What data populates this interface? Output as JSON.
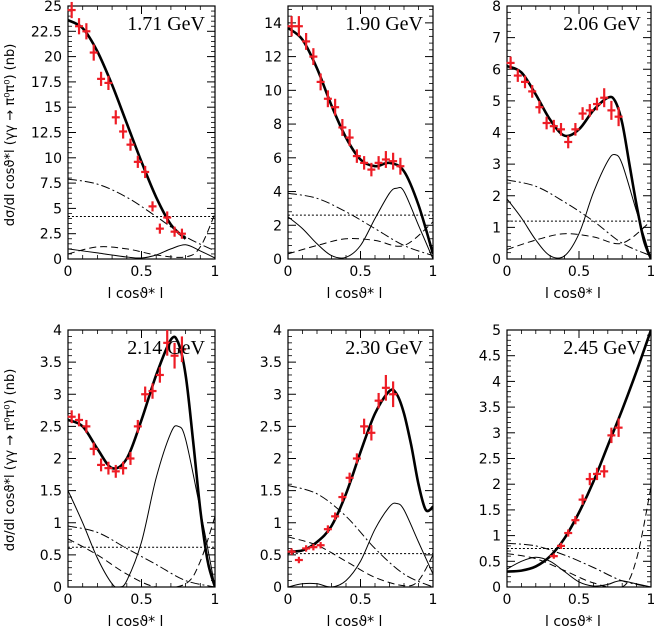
{
  "figure": {
    "y_axis_label": "dσ/dl cosϑ*l (γγ → π⁰π⁰) (nb)",
    "x_axis_label": "l cosϑ* l"
  },
  "chart_data": [
    {
      "type": "line",
      "title": "1.71 GeV",
      "xlim": [
        0,
        1
      ],
      "ylim": [
        0,
        25
      ],
      "xticks": [
        0,
        0.5,
        1
      ],
      "xticklabels": [
        "0",
        "0.5",
        "1"
      ],
      "yticks": [
        0,
        2.5,
        5,
        7.5,
        10,
        12.5,
        15,
        17.5,
        20,
        22.5,
        25
      ],
      "yticklabels": [
        "0",
        "2.5",
        "5",
        "7.5",
        "10",
        "12.5",
        "15",
        "17.5",
        "20",
        "22.5",
        "25"
      ],
      "points": {
        "x": [
          0.025,
          0.075,
          0.125,
          0.175,
          0.225,
          0.275,
          0.325,
          0.375,
          0.425,
          0.475,
          0.525,
          0.575,
          0.625,
          0.675,
          0.725,
          0.775
        ],
        "y": [
          24.6,
          23.0,
          22.5,
          20.4,
          17.8,
          17.4,
          14.0,
          12.6,
          11.3,
          9.6,
          8.6,
          5.2,
          3.0,
          4.1,
          2.7,
          2.5
        ],
        "err": [
          0.8,
          0.8,
          0.8,
          0.8,
          0.7,
          0.7,
          0.7,
          0.7,
          0.6,
          0.6,
          0.6,
          0.5,
          0.5,
          0.6,
          0.5,
          0.5
        ]
      },
      "curves": [
        {
          "style": "total",
          "x": [
            0,
            0.1,
            0.2,
            0.3,
            0.4,
            0.5,
            0.6,
            0.7,
            0.8
          ],
          "y": [
            23.6,
            22.8,
            20.5,
            17.2,
            13.4,
            9.6,
            6.1,
            3.4,
            2.0
          ]
        },
        {
          "style": "dashdot",
          "x": [
            0,
            0.2,
            0.4,
            0.6,
            0.8,
            1.0
          ],
          "y": [
            7.9,
            7.4,
            6.1,
            4.2,
            2.2,
            0.8
          ]
        },
        {
          "style": "dotted",
          "x": [
            0,
            1
          ],
          "y": [
            4.2,
            4.2
          ]
        },
        {
          "style": "solid",
          "x": [
            0,
            0.2,
            0.4,
            0.5,
            0.6,
            0.7,
            0.8,
            0.9,
            1.0
          ],
          "y": [
            1.0,
            0.6,
            0.2,
            0.1,
            0.4,
            1.0,
            1.4,
            0.8,
            0.1
          ]
        },
        {
          "style": "dashed",
          "x": [
            0,
            0.2,
            0.4,
            0.6,
            0.8,
            0.9,
            1.0
          ],
          "y": [
            0.5,
            1.2,
            1.0,
            0.4,
            0.2,
            1.2,
            4.5
          ]
        }
      ]
    },
    {
      "type": "line",
      "title": "1.90 GeV",
      "xlim": [
        0,
        1
      ],
      "ylim": [
        0,
        15
      ],
      "xticks": [
        0,
        0.5,
        1
      ],
      "xticklabels": [
        "0",
        "0.5",
        "1"
      ],
      "yticks": [
        0,
        2,
        4,
        6,
        8,
        10,
        12,
        14
      ],
      "yticklabels": [
        "0",
        "2",
        "4",
        "6",
        "8",
        "10",
        "12",
        "14"
      ],
      "points": {
        "x": [
          0.025,
          0.075,
          0.125,
          0.175,
          0.225,
          0.275,
          0.325,
          0.375,
          0.425,
          0.475,
          0.525,
          0.575,
          0.625,
          0.675,
          0.725,
          0.775
        ],
        "y": [
          13.8,
          13.8,
          12.9,
          12.0,
          10.5,
          9.5,
          9.0,
          7.8,
          7.2,
          6.1,
          5.7,
          5.3,
          5.7,
          5.9,
          5.8,
          5.5
        ],
        "err": [
          0.6,
          0.6,
          0.5,
          0.5,
          0.5,
          0.5,
          0.5,
          0.5,
          0.5,
          0.4,
          0.4,
          0.4,
          0.4,
          0.5,
          0.5,
          0.5
        ]
      },
      "curves": [
        {
          "style": "total",
          "x": [
            0,
            0.1,
            0.2,
            0.3,
            0.4,
            0.5,
            0.6,
            0.7,
            0.8,
            0.9,
            1.0
          ],
          "y": [
            13.7,
            13.0,
            11.3,
            9.1,
            7.2,
            5.9,
            5.5,
            5.7,
            5.2,
            3.2,
            0.3
          ]
        },
        {
          "style": "dashdot",
          "x": [
            0,
            0.2,
            0.4,
            0.6,
            0.8,
            1.0
          ],
          "y": [
            3.9,
            3.6,
            2.8,
            1.8,
            0.8,
            0.2
          ]
        },
        {
          "style": "dotted",
          "x": [
            0,
            1
          ],
          "y": [
            2.6,
            2.6
          ]
        },
        {
          "style": "solid",
          "x": [
            0,
            0.1,
            0.2,
            0.3,
            0.4,
            0.5,
            0.6,
            0.7,
            0.75,
            0.8,
            0.9,
            1.0
          ],
          "y": [
            2.5,
            1.8,
            0.9,
            0.2,
            0.1,
            0.8,
            2.4,
            3.9,
            4.2,
            4.0,
            2.0,
            0.0
          ]
        },
        {
          "style": "dashed",
          "x": [
            0,
            0.2,
            0.4,
            0.6,
            0.8,
            1.0
          ],
          "y": [
            0.3,
            0.8,
            1.2,
            1.1,
            0.8,
            2.2
          ]
        }
      ]
    },
    {
      "type": "line",
      "title": "2.06 GeV",
      "xlim": [
        0,
        1
      ],
      "ylim": [
        0,
        8
      ],
      "xticks": [
        0,
        0.5,
        1
      ],
      "xticklabels": [
        "0",
        "0.5",
        "1"
      ],
      "yticks": [
        0,
        1,
        2,
        3,
        4,
        5,
        6,
        7,
        8
      ],
      "yticklabels": [
        "0",
        "1",
        "2",
        "3",
        "4",
        "5",
        "6",
        "7",
        "8"
      ],
      "points": {
        "x": [
          0.025,
          0.075,
          0.125,
          0.175,
          0.225,
          0.275,
          0.325,
          0.375,
          0.425,
          0.475,
          0.525,
          0.575,
          0.625,
          0.675,
          0.725,
          0.775
        ],
        "y": [
          6.2,
          5.8,
          5.6,
          5.3,
          4.8,
          4.3,
          4.2,
          4.1,
          3.7,
          4.1,
          4.6,
          4.7,
          4.9,
          5.1,
          4.7,
          4.5
        ],
        "err": [
          0.2,
          0.2,
          0.2,
          0.2,
          0.2,
          0.2,
          0.2,
          0.2,
          0.2,
          0.2,
          0.2,
          0.2,
          0.2,
          0.3,
          0.3,
          0.3
        ]
      },
      "curves": [
        {
          "style": "total",
          "x": [
            0,
            0.1,
            0.2,
            0.3,
            0.4,
            0.5,
            0.6,
            0.7,
            0.75,
            0.8,
            0.85,
            0.9,
            0.95,
            1.0
          ],
          "y": [
            6.1,
            5.9,
            5.2,
            4.4,
            3.9,
            4.1,
            4.7,
            5.1,
            5.0,
            4.3,
            3.0,
            1.7,
            0.6,
            0.0
          ]
        },
        {
          "style": "dashdot",
          "x": [
            0,
            0.2,
            0.4,
            0.6,
            0.8,
            1.0
          ],
          "y": [
            2.5,
            2.3,
            1.8,
            1.2,
            0.5,
            0.1
          ]
        },
        {
          "style": "dotted",
          "x": [
            0,
            1
          ],
          "y": [
            1.2,
            1.2
          ]
        },
        {
          "style": "solid",
          "x": [
            0,
            0.1,
            0.2,
            0.3,
            0.4,
            0.5,
            0.6,
            0.7,
            0.75,
            0.8,
            0.9,
            1.0
          ],
          "y": [
            1.9,
            1.3,
            0.6,
            0.1,
            0.1,
            0.8,
            2.1,
            3.1,
            3.3,
            3.0,
            1.5,
            0.0
          ]
        },
        {
          "style": "dashed",
          "x": [
            0,
            0.2,
            0.4,
            0.6,
            0.8,
            1.0
          ],
          "y": [
            0.3,
            0.6,
            0.8,
            0.7,
            0.5,
            1.2
          ]
        }
      ]
    },
    {
      "type": "line",
      "title": "2.14 GeV",
      "xlim": [
        0,
        1
      ],
      "ylim": [
        0,
        4
      ],
      "xticks": [
        0,
        0.5,
        1
      ],
      "xticklabels": [
        "0",
        "0.5",
        "1"
      ],
      "yticks": [
        0,
        0.5,
        1,
        1.5,
        2,
        2.5,
        3,
        3.5,
        4
      ],
      "yticklabels": [
        "0",
        "0.5",
        "1",
        "1.5",
        "2",
        "2.5",
        "3",
        "3.5",
        "4"
      ],
      "points": {
        "x": [
          0.025,
          0.075,
          0.125,
          0.175,
          0.225,
          0.275,
          0.325,
          0.375,
          0.425,
          0.475,
          0.525,
          0.575,
          0.625,
          0.675,
          0.725,
          0.775
        ],
        "y": [
          2.65,
          2.6,
          2.5,
          2.15,
          1.9,
          1.85,
          1.8,
          1.85,
          2.0,
          2.5,
          3.0,
          3.05,
          3.3,
          3.8,
          3.6,
          3.7
        ],
        "err": [
          0.1,
          0.1,
          0.1,
          0.1,
          0.1,
          0.1,
          0.1,
          0.1,
          0.1,
          0.1,
          0.12,
          0.12,
          0.12,
          0.2,
          0.2,
          0.2
        ]
      },
      "curves": [
        {
          "style": "total",
          "x": [
            0,
            0.1,
            0.2,
            0.3,
            0.4,
            0.5,
            0.6,
            0.7,
            0.75,
            0.8,
            0.85,
            0.9,
            0.95,
            1.0
          ],
          "y": [
            2.6,
            2.5,
            2.15,
            1.85,
            2.0,
            2.6,
            3.3,
            3.85,
            3.8,
            3.3,
            2.3,
            1.2,
            0.4,
            0.0
          ]
        },
        {
          "style": "dashdot",
          "x": [
            0,
            0.2,
            0.4,
            0.6,
            0.8,
            1.0
          ],
          "y": [
            0.95,
            0.85,
            0.6,
            0.35,
            0.1,
            0.0
          ]
        },
        {
          "style": "dotted",
          "x": [
            0,
            1
          ],
          "y": [
            0.62,
            0.62
          ]
        },
        {
          "style": "solid",
          "x": [
            0,
            0.1,
            0.2,
            0.3,
            0.35,
            0.4,
            0.5,
            0.6,
            0.7,
            0.75,
            0.8,
            0.9,
            1.0
          ],
          "y": [
            1.5,
            1.0,
            0.45,
            0.05,
            0.0,
            0.1,
            0.7,
            1.7,
            2.4,
            2.5,
            2.3,
            1.2,
            0.0
          ]
        },
        {
          "style": "dashed",
          "x": [
            0,
            0.2,
            0.4,
            0.6,
            0.8,
            0.9,
            1.0
          ],
          "y": [
            0.75,
            0.5,
            0.2,
            0.0,
            0.05,
            0.4,
            1.1
          ]
        }
      ]
    },
    {
      "type": "line",
      "title": "2.30 GeV",
      "xlim": [
        0,
        1
      ],
      "ylim": [
        0,
        4
      ],
      "xticks": [
        0,
        0.5,
        1
      ],
      "xticklabels": [
        "0",
        "0.5",
        "1"
      ],
      "yticks": [
        0,
        0.5,
        1,
        1.5,
        2,
        2.5,
        3,
        3.5,
        4
      ],
      "yticklabels": [
        "0",
        "0.5",
        "1",
        "1.5",
        "2",
        "2.5",
        "3",
        "3.5",
        "4"
      ],
      "points": {
        "x": [
          0.025,
          0.075,
          0.125,
          0.175,
          0.225,
          0.275,
          0.325,
          0.375,
          0.425,
          0.475,
          0.525,
          0.575,
          0.625,
          0.675,
          0.725
        ],
        "y": [
          0.55,
          0.42,
          0.6,
          0.62,
          0.65,
          0.9,
          1.1,
          1.4,
          1.7,
          2.0,
          2.5,
          2.4,
          2.9,
          3.1,
          3.0
        ],
        "err": [
          0.05,
          0.05,
          0.05,
          0.05,
          0.05,
          0.06,
          0.06,
          0.07,
          0.08,
          0.08,
          0.12,
          0.12,
          0.12,
          0.2,
          0.2
        ]
      },
      "curves": [
        {
          "style": "total",
          "x": [
            0,
            0.1,
            0.2,
            0.3,
            0.4,
            0.5,
            0.6,
            0.7,
            0.75,
            0.8,
            0.85,
            0.9,
            0.95,
            1.0
          ],
          "y": [
            0.55,
            0.57,
            0.7,
            0.95,
            1.45,
            2.1,
            2.7,
            3.05,
            3.0,
            2.7,
            2.2,
            1.6,
            1.2,
            1.25
          ]
        },
        {
          "style": "dashdot",
          "x": [
            0,
            0.2,
            0.4,
            0.6,
            0.8,
            1.0
          ],
          "y": [
            1.58,
            1.45,
            1.1,
            0.6,
            0.2,
            0.0
          ]
        },
        {
          "style": "dotted",
          "x": [
            0,
            1
          ],
          "y": [
            0.52,
            0.52
          ]
        },
        {
          "style": "solid",
          "x": [
            0,
            0.1,
            0.2,
            0.3,
            0.4,
            0.5,
            0.6,
            0.7,
            0.75,
            0.8,
            0.9,
            1.0
          ],
          "y": [
            0.0,
            0.05,
            0.05,
            0.0,
            0.1,
            0.4,
            0.9,
            1.25,
            1.3,
            1.2,
            0.7,
            0.2
          ]
        },
        {
          "style": "dashed",
          "x": [
            0,
            0.2,
            0.4,
            0.6,
            0.8,
            0.9,
            1.0
          ],
          "y": [
            0.78,
            0.65,
            0.4,
            0.15,
            0.02,
            0.1,
            0.5
          ]
        }
      ]
    },
    {
      "type": "line",
      "title": "2.45 GeV",
      "xlim": [
        0,
        1
      ],
      "ylim": [
        0,
        5
      ],
      "xticks": [
        0,
        0.5,
        1
      ],
      "xticklabels": [
        "0",
        "0.5",
        "1"
      ],
      "yticks": [
        0,
        0.5,
        1,
        1.5,
        2,
        2.5,
        3,
        3.5,
        4,
        4.5,
        5
      ],
      "yticklabels": [
        "0",
        "0.5",
        "1",
        "1.5",
        "2",
        "2.5",
        "3",
        "3.5",
        "4",
        "4.5",
        "5"
      ],
      "points": {
        "x": [
          0.325,
          0.375,
          0.425,
          0.475,
          0.525,
          0.575,
          0.625,
          0.675,
          0.725,
          0.775
        ],
        "y": [
          0.6,
          0.8,
          1.05,
          1.3,
          1.7,
          2.1,
          2.2,
          2.25,
          2.95,
          3.1
        ],
        "err": [
          0.05,
          0.06,
          0.07,
          0.08,
          0.1,
          0.12,
          0.12,
          0.12,
          0.15,
          0.18
        ]
      },
      "curves": [
        {
          "style": "total",
          "x": [
            0,
            0.1,
            0.2,
            0.3,
            0.4,
            0.5,
            0.6,
            0.7,
            0.8,
            0.9,
            1.0
          ],
          "y": [
            0.3,
            0.32,
            0.4,
            0.6,
            0.95,
            1.45,
            2.05,
            2.75,
            3.45,
            4.2,
            5.0
          ]
        },
        {
          "style": "dashdot",
          "x": [
            0,
            0.2,
            0.4,
            0.6,
            0.8,
            1.0
          ],
          "y": [
            0.85,
            0.8,
            0.62,
            0.38,
            0.12,
            0.0
          ]
        },
        {
          "style": "dotted",
          "x": [
            0,
            1
          ],
          "y": [
            0.75,
            0.75
          ]
        },
        {
          "style": "solid",
          "x": [
            0,
            0.1,
            0.2,
            0.3,
            0.4,
            0.5,
            0.6,
            0.7,
            0.75,
            0.8,
            0.9,
            1.0
          ],
          "y": [
            0.35,
            0.5,
            0.58,
            0.5,
            0.3,
            0.1,
            0.02,
            0.05,
            0.1,
            0.12,
            0.06,
            0.0
          ]
        },
        {
          "style": "dashed",
          "x": [
            0,
            0.2,
            0.4,
            0.6,
            0.8,
            0.9,
            1.0
          ],
          "y": [
            0.65,
            0.55,
            0.32,
            0.08,
            0.0,
            0.55,
            1.95
          ]
        }
      ]
    }
  ]
}
